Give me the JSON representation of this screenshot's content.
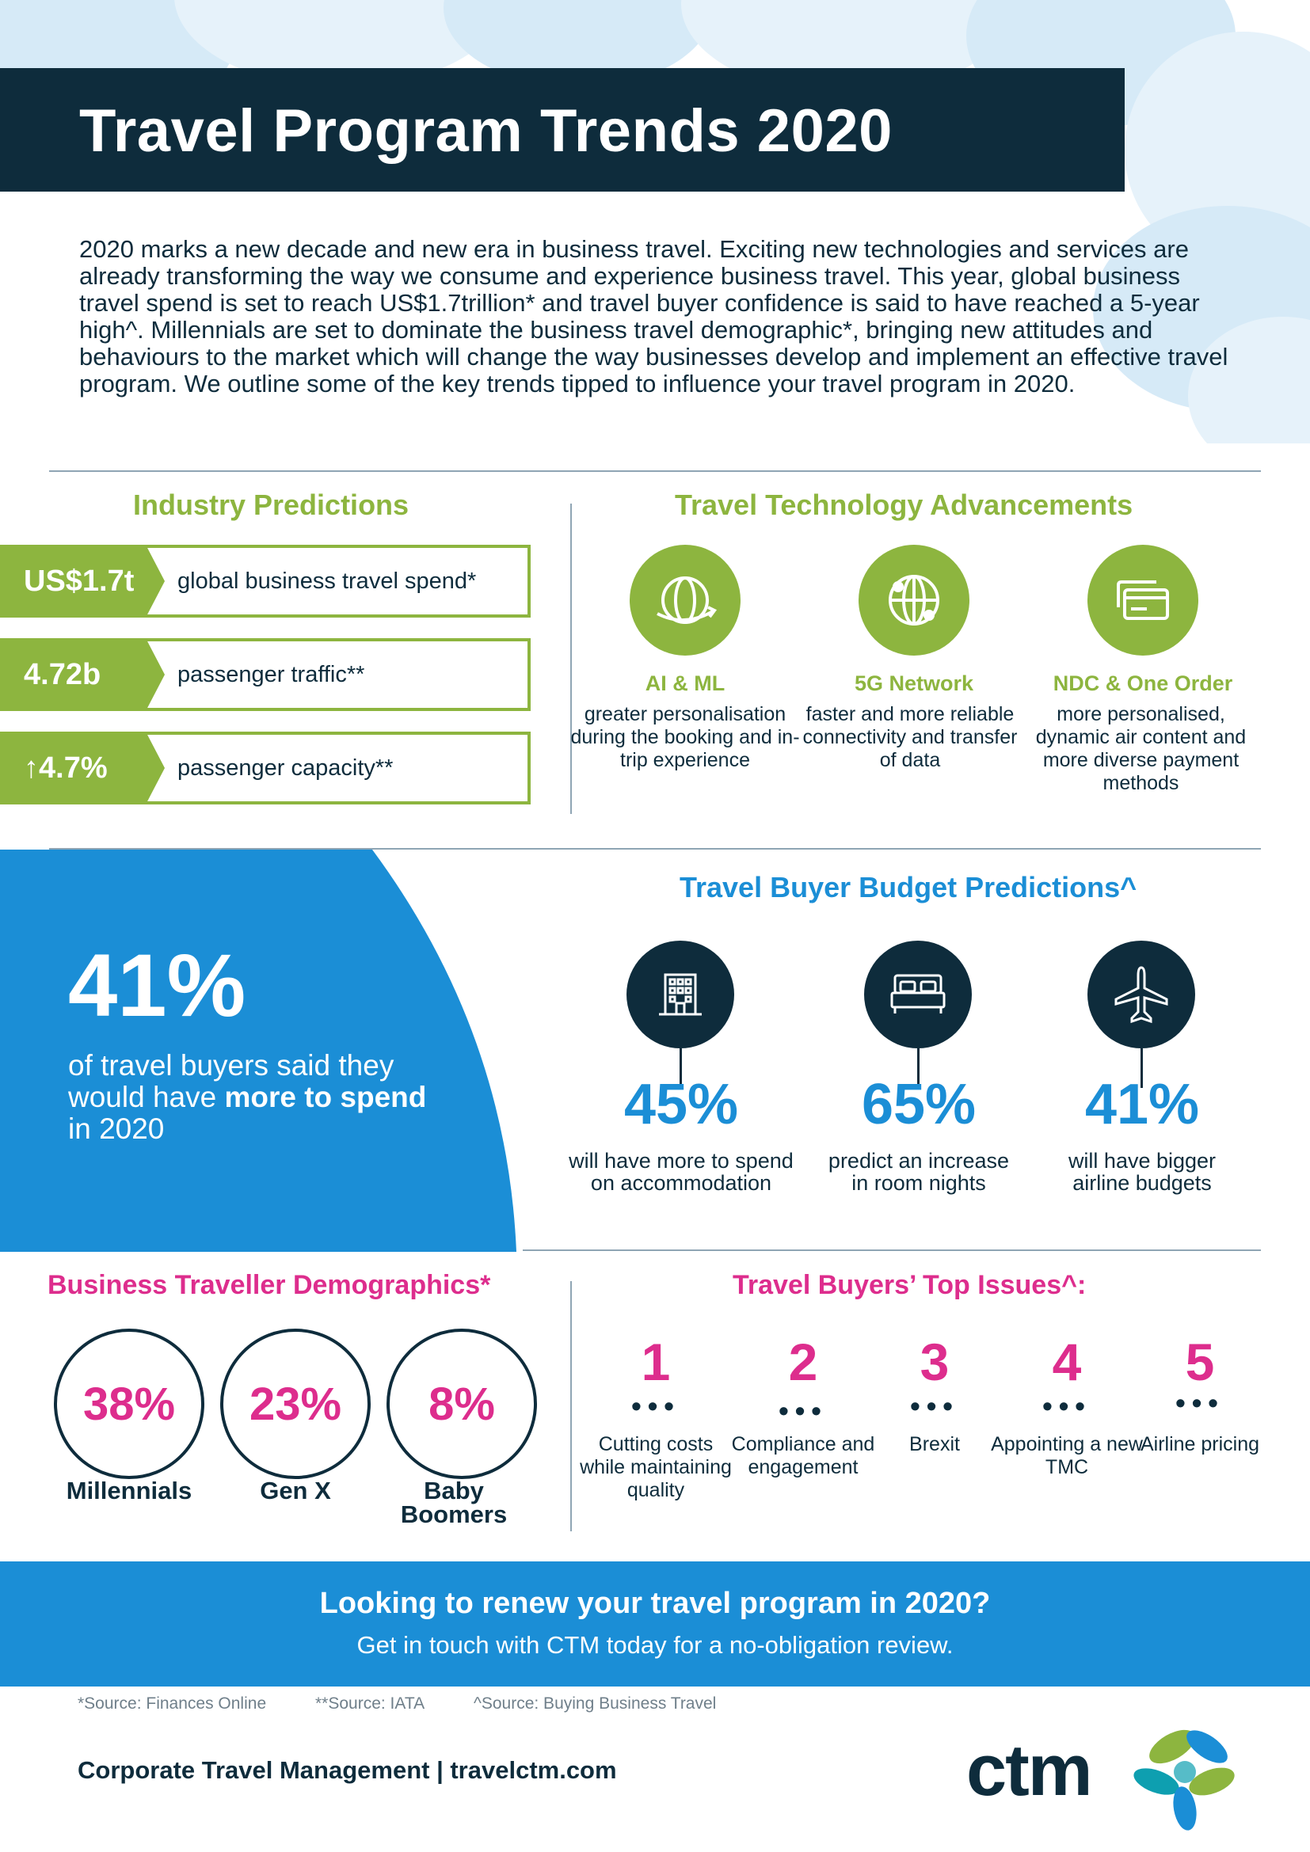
{
  "title": "Travel Program Trends 2020",
  "intro": "2020 marks a new decade and new era in business travel. Exciting new technologies and services are already transforming the way we consume and experience business travel. This year, global business travel spend is set to reach US$1.7trillion* and travel buyer confidence is said to have reached a 5-year high^. Millennials are set to dominate the business travel demographic*, bringing new attitudes and behaviours to the market which will change the way businesses develop and implement an effective travel program. We outline some of the key trends tipped to influence your travel program in 2020.",
  "industry": {
    "heading": "Industry Predictions",
    "rows": [
      {
        "value": "US$1.7t",
        "label": "global business travel spend*"
      },
      {
        "value": "4.72b",
        "label": "passenger traffic**"
      },
      {
        "value": "↑4.7%",
        "label": "passenger capacity**"
      }
    ]
  },
  "tech": {
    "heading": "Travel Technology Advancements",
    "items": [
      {
        "title": "AI & ML",
        "desc": "greater personalisation during the booking and in-trip experience",
        "icon": "orbit-icon"
      },
      {
        "title": "5G Network",
        "desc": "faster and more reliable connectivity and transfer of data",
        "icon": "globe-network-icon"
      },
      {
        "title": "NDC & One Order",
        "desc": "more personalised, dynamic air content and more diverse payment methods",
        "icon": "credit-card-icon"
      }
    ]
  },
  "spend": {
    "value": "41%",
    "desc_pre": "of travel buyers said they would have",
    "desc_bold": "more to spend",
    "desc_post": "in 2020"
  },
  "budget": {
    "heading": "Travel Buyer Budget Predictions^",
    "items": [
      {
        "pct": "45%",
        "desc": "will have more to spend on accommodation",
        "icon": "building-icon",
        "value": 45
      },
      {
        "pct": "65%",
        "desc": "predict an increase in room nights",
        "icon": "bed-icon",
        "value": 65
      },
      {
        "pct": "41%",
        "desc": "will have bigger airline budgets",
        "icon": "airplane-icon",
        "value": 41
      }
    ]
  },
  "demographics": {
    "heading": "Business Traveller Demographics*",
    "items": [
      {
        "pct": "38%",
        "label": "Millennials"
      },
      {
        "pct": "23%",
        "label": "Gen X"
      },
      {
        "pct": "8%",
        "label": "Baby Boomers"
      }
    ]
  },
  "issues": {
    "heading": "Travel Buyers’ Top Issues^:",
    "items": [
      {
        "num": "1",
        "desc": "Cutting costs while maintaining quality"
      },
      {
        "num": "2",
        "desc": "Compliance and engagement"
      },
      {
        "num": "3",
        "desc": "Brexit"
      },
      {
        "num": "4",
        "desc": "Appointing a new TMC"
      },
      {
        "num": "5",
        "desc": "Airline pricing"
      }
    ]
  },
  "cta": {
    "heading": "Looking to renew your travel program in 2020?",
    "sub": "Get in touch with CTM today for a no-obligation review."
  },
  "sources": [
    "*Source: Finances Online",
    "**Source: IATA",
    "^Source: Buying Business Travel"
  ],
  "footer": "Corporate Travel Management | travelctm.com",
  "logo": "ctm",
  "colors": {
    "navy": "#0e2c3c",
    "green": "#8db53f",
    "blue": "#1b8ed6",
    "pink": "#dd2d8d"
  }
}
